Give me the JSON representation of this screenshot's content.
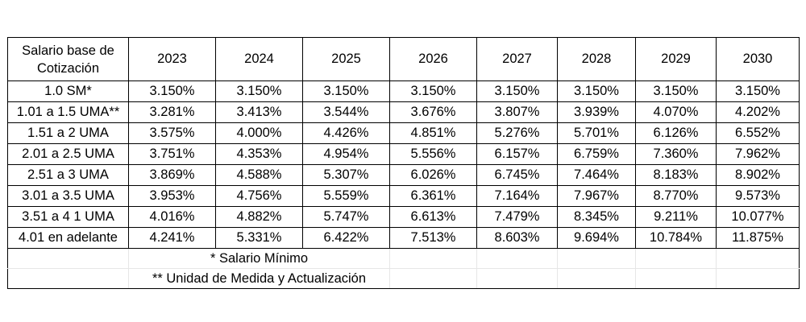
{
  "table": {
    "header_label": [
      "Salario base de",
      "Cotización"
    ],
    "years": [
      "2023",
      "2024",
      "2025",
      "2026",
      "2027",
      "2028",
      "2029",
      "2030"
    ],
    "rows": [
      {
        "label": "1.0 SM*",
        "values": [
          "3.150%",
          "3.150%",
          "3.150%",
          "3.150%",
          "3.150%",
          "3.150%",
          "3.150%",
          "3.150%"
        ]
      },
      {
        "label": "1.01 a 1.5 UMA**",
        "values": [
          "3.281%",
          "3.413%",
          "3.544%",
          "3.676%",
          "3.807%",
          "3.939%",
          "4.070%",
          "4.202%"
        ]
      },
      {
        "label": "1.51 a 2 UMA",
        "values": [
          "3.575%",
          "4.000%",
          "4.426%",
          "4.851%",
          "5.276%",
          "5.701%",
          "6.126%",
          "6.552%"
        ]
      },
      {
        "label": "2.01 a 2.5 UMA",
        "values": [
          "3.751%",
          "4.353%",
          "4.954%",
          "5.556%",
          "6.157%",
          "6.759%",
          "7.360%",
          "7.962%"
        ]
      },
      {
        "label": "2.51 a 3 UMA",
        "values": [
          "3.869%",
          "4.588%",
          "5.307%",
          "6.026%",
          "6.745%",
          "7.464%",
          "8.183%",
          "8.902%"
        ]
      },
      {
        "label": "3.01 a 3.5 UMA",
        "values": [
          "3.953%",
          "4.756%",
          "5.559%",
          "6.361%",
          "7.164%",
          "7.967%",
          "8.770%",
          "9.573%"
        ]
      },
      {
        "label": "3.51 a 4 1 UMA",
        "values": [
          "4.016%",
          "4.882%",
          "5.747%",
          "6.613%",
          "7.479%",
          "8.345%",
          "9.211%",
          "10.077%"
        ]
      },
      {
        "label": "4.01 en adelante",
        "values": [
          "4.241%",
          "5.331%",
          "6.422%",
          "7.513%",
          "8.603%",
          "9.694%",
          "10.784%",
          "11.875%"
        ]
      }
    ],
    "notes": [
      "* Salario Mínimo",
      "** Unidad de Medida y Actualización"
    ]
  }
}
